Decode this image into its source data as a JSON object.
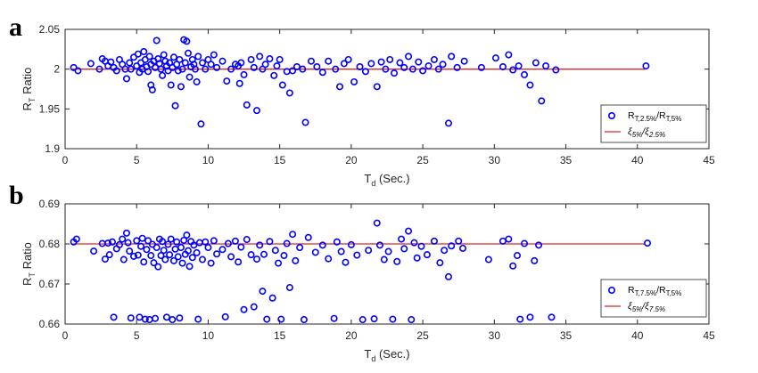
{
  "figure": {
    "panels": [
      "a",
      "b"
    ]
  },
  "chart_data": [
    {
      "panel": "a",
      "type": "scatter",
      "xlabel": {
        "main": "T",
        "sub": "d",
        "rest": " (Sec.)"
      },
      "ylabel": {
        "main": "R",
        "sub": "T",
        "rest": "  Ratio"
      },
      "xlim": [
        0,
        45
      ],
      "ylim": [
        1.9,
        2.05
      ],
      "xticks": [
        0,
        5,
        10,
        15,
        20,
        25,
        30,
        35,
        40,
        45
      ],
      "yticks": [
        1.9,
        1.95,
        2,
        2.05
      ],
      "ytick_labels": [
        "1.9",
        "1.95",
        "2",
        "2.05"
      ],
      "grid": false,
      "legend_position": "bottom-right",
      "legend": [
        {
          "kind": "marker",
          "main": "R",
          "sub1": "T,2.5%",
          "mid": "/R",
          "sub2": "T,5%"
        },
        {
          "kind": "line",
          "main": "ξ",
          "sub1": "5%",
          "mid": "/ξ",
          "sub2": "2.5%"
        }
      ],
      "reference_line": {
        "x": [
          0.5,
          40.5
        ],
        "y": 2.0,
        "color": "#d62728"
      },
      "marker_color": "#0000ff",
      "points": [
        [
          0.6,
          2.002
        ],
        [
          0.9,
          1.998
        ],
        [
          1.8,
          2.007
        ],
        [
          2.4,
          2.0
        ],
        [
          2.6,
          2.013
        ],
        [
          2.8,
          2.01
        ],
        [
          3.0,
          2.004
        ],
        [
          3.2,
          2.009
        ],
        [
          3.4,
          2.002
        ],
        [
          3.6,
          1.998
        ],
        [
          3.8,
          2.012
        ],
        [
          4.0,
          2.006
        ],
        [
          4.2,
          2.0
        ],
        [
          4.3,
          1.988
        ],
        [
          4.5,
          2.008
        ],
        [
          4.6,
          2.0
        ],
        [
          4.8,
          2.015
        ],
        [
          5.0,
          2.004
        ],
        [
          5.1,
          2.019
        ],
        [
          5.2,
          1.996
        ],
        [
          5.3,
          2.008
        ],
        [
          5.4,
          2.0
        ],
        [
          5.5,
          2.022
        ],
        [
          5.6,
          2.012
        ],
        [
          5.7,
          2.003
        ],
        [
          5.8,
          1.997
        ],
        [
          5.9,
          2.016
        ],
        [
          6.0,
          2.006
        ],
        [
          6.0,
          1.98
        ],
        [
          6.1,
          1.974
        ],
        [
          6.2,
          2.01
        ],
        [
          6.3,
          2.002
        ],
        [
          6.4,
          2.036
        ],
        [
          6.5,
          2.013
        ],
        [
          6.6,
          2.007
        ],
        [
          6.7,
          2.0
        ],
        [
          6.8,
          1.992
        ],
        [
          6.9,
          2.018
        ],
        [
          7.0,
          2.01
        ],
        [
          7.1,
          2.004
        ],
        [
          7.2,
          1.998
        ],
        [
          7.3,
          2.008
        ],
        [
          7.4,
          1.98
        ],
        [
          7.5,
          2.002
        ],
        [
          7.6,
          2.015
        ],
        [
          7.7,
          1.954
        ],
        [
          7.8,
          2.006
        ],
        [
          7.9,
          1.998
        ],
        [
          8.0,
          2.012
        ],
        [
          8.1,
          1.978
        ],
        [
          8.2,
          2.0
        ],
        [
          8.3,
          2.037
        ],
        [
          8.4,
          2.008
        ],
        [
          8.5,
          2.035
        ],
        [
          8.6,
          2.02
        ],
        [
          8.7,
          1.99
        ],
        [
          8.8,
          2.003
        ],
        [
          8.9,
          2.012
        ],
        [
          9.0,
          2.006
        ],
        [
          9.1,
          2.0
        ],
        [
          9.2,
          1.984
        ],
        [
          9.3,
          2.016
        ],
        [
          9.5,
          1.931
        ],
        [
          9.6,
          2.008
        ],
        [
          9.8,
          2.0
        ],
        [
          10.0,
          2.012
        ],
        [
          10.2,
          2.006
        ],
        [
          10.4,
          2.018
        ],
        [
          10.6,
          2.002
        ],
        [
          11.0,
          2.01
        ],
        [
          11.3,
          1.985
        ],
        [
          11.6,
          2.0
        ],
        [
          11.9,
          2.006
        ],
        [
          12.1,
          2.004
        ],
        [
          12.2,
          1.982
        ],
        [
          12.3,
          2.008
        ],
        [
          12.5,
          1.993
        ],
        [
          12.7,
          1.955
        ],
        [
          13.0,
          2.012
        ],
        [
          13.2,
          2.002
        ],
        [
          13.4,
          1.948
        ],
        [
          13.6,
          2.016
        ],
        [
          13.8,
          2.0
        ],
        [
          14.0,
          2.006
        ],
        [
          14.3,
          2.013
        ],
        [
          14.6,
          1.992
        ],
        [
          14.8,
          2.004
        ],
        [
          15.0,
          2.012
        ],
        [
          15.2,
          1.98
        ],
        [
          15.5,
          1.997
        ],
        [
          15.7,
          1.97
        ],
        [
          15.9,
          1.998
        ],
        [
          16.2,
          2.003
        ],
        [
          16.6,
          2.0
        ],
        [
          16.8,
          1.933
        ],
        [
          17.2,
          2.01
        ],
        [
          17.6,
          2.003
        ],
        [
          18.0,
          1.996
        ],
        [
          18.4,
          2.01
        ],
        [
          18.9,
          2.0
        ],
        [
          19.2,
          1.978
        ],
        [
          19.5,
          2.007
        ],
        [
          19.8,
          2.012
        ],
        [
          20.2,
          1.984
        ],
        [
          20.6,
          2.003
        ],
        [
          21.0,
          1.997
        ],
        [
          21.4,
          2.007
        ],
        [
          21.8,
          1.978
        ],
        [
          22.1,
          2.009
        ],
        [
          22.4,
          2.0
        ],
        [
          22.7,
          2.012
        ],
        [
          23.0,
          1.995
        ],
        [
          23.4,
          2.008
        ],
        [
          23.7,
          2.002
        ],
        [
          24.0,
          2.016
        ],
        [
          24.3,
          2.0
        ],
        [
          24.7,
          2.009
        ],
        [
          25.0,
          1.998
        ],
        [
          25.4,
          2.004
        ],
        [
          25.8,
          2.012
        ],
        [
          26.1,
          2.0
        ],
        [
          26.4,
          2.006
        ],
        [
          26.8,
          1.932
        ],
        [
          27.0,
          2.016
        ],
        [
          27.4,
          2.002
        ],
        [
          27.9,
          2.01
        ],
        [
          29.1,
          2.002
        ],
        [
          30.1,
          2.014
        ],
        [
          30.6,
          2.003
        ],
        [
          31.0,
          2.018
        ],
        [
          31.3,
          1.999
        ],
        [
          31.7,
          2.004
        ],
        [
          32.1,
          1.993
        ],
        [
          32.5,
          1.98
        ],
        [
          32.9,
          2.008
        ],
        [
          33.3,
          1.96
        ],
        [
          33.6,
          2.004
        ],
        [
          34.3,
          1.999
        ],
        [
          40.6,
          2.004
        ]
      ]
    },
    {
      "panel": "b",
      "type": "scatter",
      "xlabel": {
        "main": "T",
        "sub": "d",
        "rest": " (Sec.)"
      },
      "ylabel": {
        "main": "R",
        "sub": "T",
        "rest": "  Ratio"
      },
      "xlim": [
        0,
        45
      ],
      "ylim": [
        0.66,
        0.69
      ],
      "xticks": [
        0,
        5,
        10,
        15,
        20,
        25,
        30,
        35,
        40,
        45
      ],
      "yticks": [
        0.66,
        0.67,
        0.68,
        0.69
      ],
      "ytick_labels": [
        "0.66",
        "0.67",
        "0.68",
        "0.69"
      ],
      "grid": false,
      "legend_position": "bottom-right",
      "legend": [
        {
          "kind": "marker",
          "main": "R",
          "sub1": "T,7.5%",
          "mid": "/R",
          "sub2": "T,5%"
        },
        {
          "kind": "line",
          "main": "ξ",
          "sub1": "5%",
          "mid": "/ξ",
          "sub2": "7.5%"
        }
      ],
      "reference_line": {
        "x": [
          0.5,
          40.5
        ],
        "y": 0.68,
        "color": "#d62728"
      },
      "marker_color": "#0000ff",
      "points": [
        [
          0.6,
          0.6805
        ],
        [
          0.8,
          0.6812
        ],
        [
          2.0,
          0.6782
        ],
        [
          2.6,
          0.6801
        ],
        [
          2.8,
          0.6762
        ],
        [
          3.0,
          0.6802
        ],
        [
          3.1,
          0.6773
        ],
        [
          3.3,
          0.6805
        ],
        [
          3.4,
          0.6617
        ],
        [
          3.6,
          0.6788
        ],
        [
          3.8,
          0.6798
        ],
        [
          4.0,
          0.6812
        ],
        [
          4.1,
          0.6761
        ],
        [
          4.3,
          0.6827
        ],
        [
          4.4,
          0.6803
        ],
        [
          4.5,
          0.6782
        ],
        [
          4.6,
          0.6615
        ],
        [
          4.8,
          0.6769
        ],
        [
          5.0,
          0.6808
        ],
        [
          5.1,
          0.6772
        ],
        [
          5.2,
          0.6617
        ],
        [
          5.3,
          0.6794
        ],
        [
          5.4,
          0.6814
        ],
        [
          5.5,
          0.6755
        ],
        [
          5.6,
          0.6612
        ],
        [
          5.7,
          0.6786
        ],
        [
          5.8,
          0.6808
        ],
        [
          5.9,
          0.6611
        ],
        [
          6.0,
          0.6771
        ],
        [
          6.1,
          0.6799
        ],
        [
          6.2,
          0.6753
        ],
        [
          6.3,
          0.6614
        ],
        [
          6.4,
          0.6791
        ],
        [
          6.5,
          0.6743
        ],
        [
          6.6,
          0.6812
        ],
        [
          6.7,
          0.6771
        ],
        [
          6.8,
          0.6806
        ],
        [
          6.9,
          0.6784
        ],
        [
          7.0,
          0.6761
        ],
        [
          7.1,
          0.6617
        ],
        [
          7.2,
          0.6799
        ],
        [
          7.3,
          0.6773
        ],
        [
          7.4,
          0.6812
        ],
        [
          7.5,
          0.6611
        ],
        [
          7.6,
          0.6758
        ],
        [
          7.7,
          0.6787
        ],
        [
          7.8,
          0.6805
        ],
        [
          7.9,
          0.6768
        ],
        [
          8.0,
          0.6615
        ],
        [
          8.1,
          0.6791
        ],
        [
          8.2,
          0.6752
        ],
        [
          8.3,
          0.6809
        ],
        [
          8.4,
          0.6774
        ],
        [
          8.5,
          0.6822
        ],
        [
          8.6,
          0.6783
        ],
        [
          8.7,
          0.6744
        ],
        [
          8.8,
          0.6806
        ],
        [
          8.9,
          0.6766
        ],
        [
          9.0,
          0.6797
        ],
        [
          9.2,
          0.6778
        ],
        [
          9.3,
          0.6612
        ],
        [
          9.4,
          0.6803
        ],
        [
          9.6,
          0.6761
        ],
        [
          9.8,
          0.6805
        ],
        [
          10.0,
          0.6791
        ],
        [
          10.2,
          0.6752
        ],
        [
          10.4,
          0.6808
        ],
        [
          10.6,
          0.6775
        ],
        [
          11.0,
          0.6786
        ],
        [
          11.2,
          0.6618
        ],
        [
          11.4,
          0.6801
        ],
        [
          11.6,
          0.6768
        ],
        [
          11.9,
          0.6807
        ],
        [
          12.1,
          0.6755
        ],
        [
          12.3,
          0.6792
        ],
        [
          12.5,
          0.6636
        ],
        [
          12.7,
          0.6811
        ],
        [
          13.0,
          0.6773
        ],
        [
          13.2,
          0.6643
        ],
        [
          13.4,
          0.6762
        ],
        [
          13.6,
          0.6797
        ],
        [
          13.8,
          0.6682
        ],
        [
          13.9,
          0.6774
        ],
        [
          14.1,
          0.6612
        ],
        [
          14.3,
          0.6806
        ],
        [
          14.5,
          0.6665
        ],
        [
          14.7,
          0.6784
        ],
        [
          14.9,
          0.6752
        ],
        [
          15.1,
          0.6612
        ],
        [
          15.3,
          0.6771
        ],
        [
          15.5,
          0.6801
        ],
        [
          15.7,
          0.6691
        ],
        [
          15.9,
          0.6824
        ],
        [
          16.1,
          0.6758
        ],
        [
          16.4,
          0.6791
        ],
        [
          16.7,
          0.6611
        ],
        [
          17.0,
          0.6816
        ],
        [
          17.5,
          0.6779
        ],
        [
          18.0,
          0.6797
        ],
        [
          18.4,
          0.6763
        ],
        [
          18.8,
          0.6614
        ],
        [
          19.0,
          0.6805
        ],
        [
          19.3,
          0.6781
        ],
        [
          19.6,
          0.6754
        ],
        [
          20.0,
          0.6798
        ],
        [
          20.4,
          0.6772
        ],
        [
          20.8,
          0.6611
        ],
        [
          21.2,
          0.6784
        ],
        [
          21.6,
          0.6613
        ],
        [
          21.8,
          0.6852
        ],
        [
          22.0,
          0.6797
        ],
        [
          22.3,
          0.6761
        ],
        [
          22.6,
          0.6781
        ],
        [
          22.9,
          0.6612
        ],
        [
          23.2,
          0.6756
        ],
        [
          23.5,
          0.6812
        ],
        [
          23.7,
          0.6788
        ],
        [
          24.0,
          0.6832
        ],
        [
          24.2,
          0.6611
        ],
        [
          24.4,
          0.6803
        ],
        [
          24.6,
          0.6765
        ],
        [
          24.9,
          0.6794
        ],
        [
          25.3,
          0.6773
        ],
        [
          25.8,
          0.6807
        ],
        [
          26.2,
          0.6753
        ],
        [
          26.5,
          0.6784
        ],
        [
          26.8,
          0.6718
        ],
        [
          27.0,
          0.6795
        ],
        [
          27.5,
          0.6807
        ],
        [
          27.8,
          0.6789
        ],
        [
          29.6,
          0.6761
        ],
        [
          30.6,
          0.6807
        ],
        [
          31.0,
          0.6812
        ],
        [
          31.3,
          0.6745
        ],
        [
          31.6,
          0.6771
        ],
        [
          31.8,
          0.6612
        ],
        [
          32.1,
          0.6801
        ],
        [
          32.5,
          0.6617
        ],
        [
          32.8,
          0.6758
        ],
        [
          33.1,
          0.6797
        ],
        [
          34.0,
          0.6617
        ],
        [
          40.7,
          0.6802
        ]
      ]
    }
  ]
}
